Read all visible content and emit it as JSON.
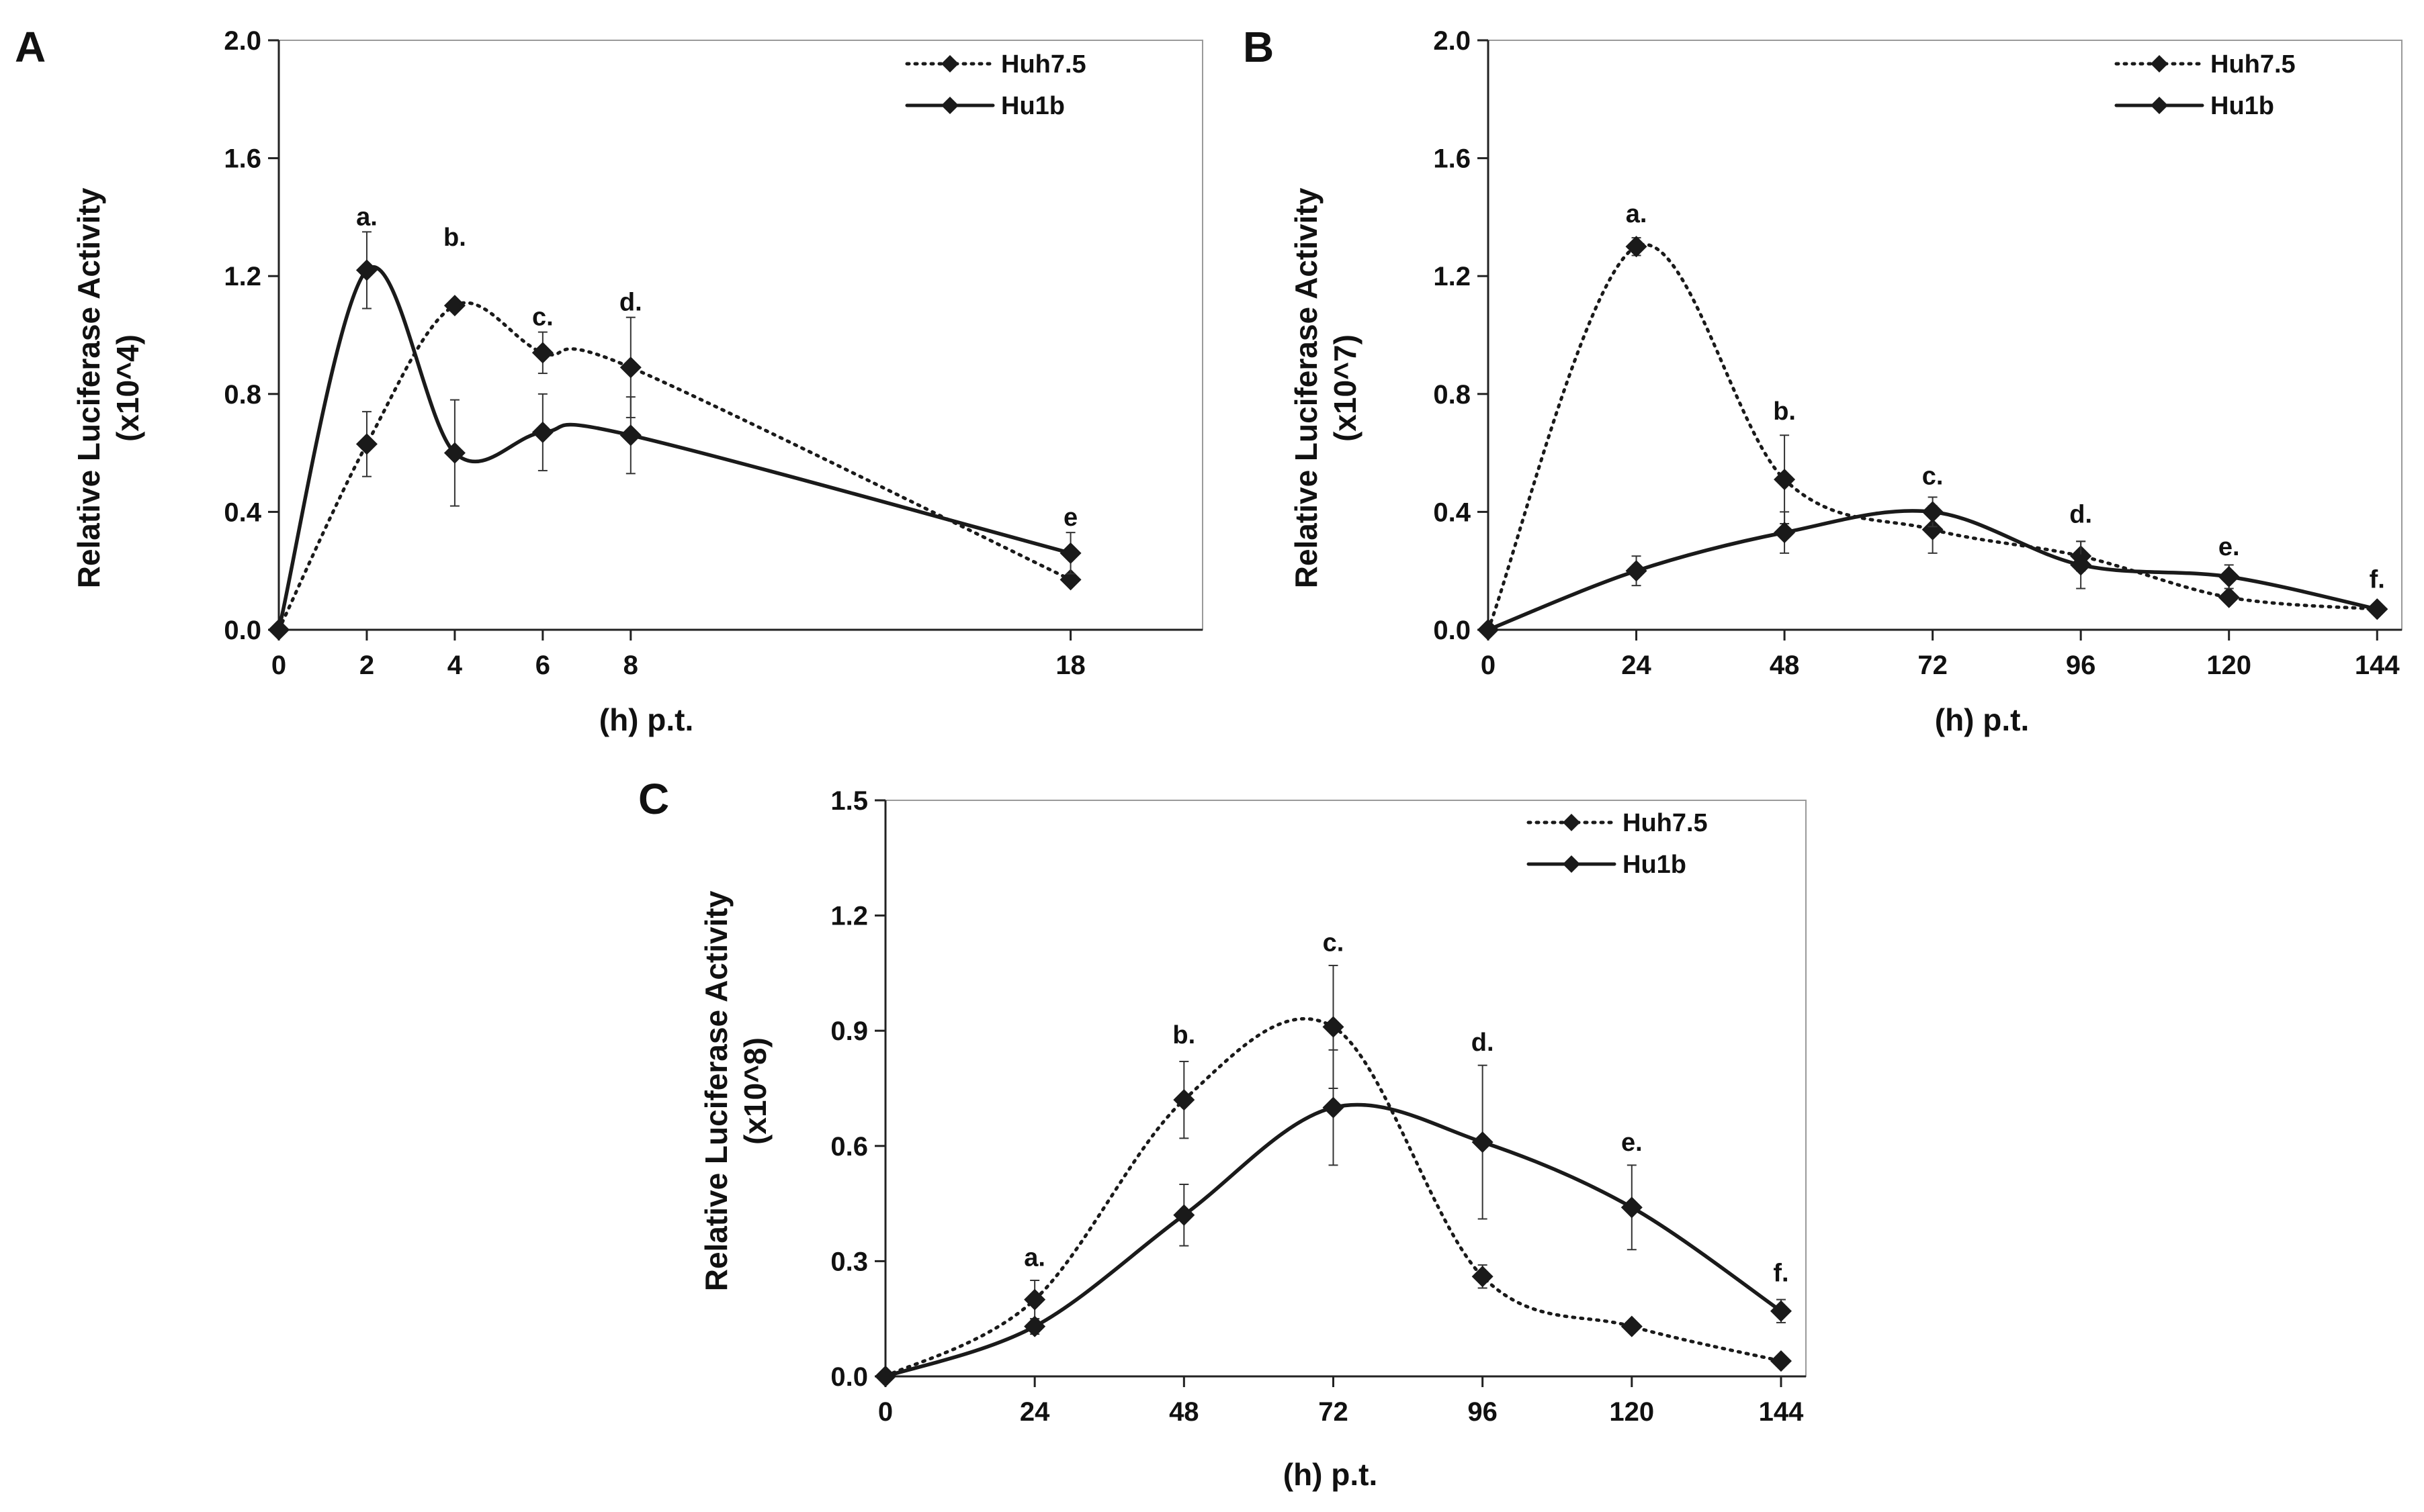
{
  "figure": {
    "description_free": true
  },
  "chart_data": [
    {
      "panel": "A",
      "type": "line",
      "ylabel": "Relative Luciferase Activity",
      "yunit": "(x10^4)",
      "xlabel": "(h) p.t.",
      "x_ticks": [
        "0",
        "2",
        "4",
        "6",
        "8",
        "18"
      ],
      "x_tick_values": [
        0,
        2,
        4,
        6,
        8,
        18
      ],
      "xlim": [
        0,
        21
      ],
      "ylim": [
        0,
        2.0
      ],
      "y_ticks": [
        "0.0",
        "0.4",
        "0.8",
        "1.2",
        "1.6",
        "2.0"
      ],
      "y_tick_values": [
        0,
        0.4,
        0.8,
        1.2,
        1.6,
        2.0
      ],
      "series": [
        {
          "name": "Huh7.5",
          "style": "dotted",
          "x": [
            0,
            2,
            4,
            6,
            8,
            18
          ],
          "values": [
            0,
            0.63,
            1.1,
            0.94,
            0.89,
            0.17
          ],
          "err": [
            0,
            0.11,
            0,
            0.07,
            0.17,
            0
          ]
        },
        {
          "name": "Hu1b",
          "style": "solid",
          "x": [
            0,
            2,
            4,
            6,
            8,
            18
          ],
          "values": [
            0,
            1.22,
            0.6,
            0.67,
            0.66,
            0.26
          ],
          "err": [
            0,
            0.13,
            0.18,
            0.13,
            0.13,
            0.07
          ]
        }
      ],
      "annotations": [
        {
          "label": "a.",
          "x": 2,
          "y": 1.35
        },
        {
          "label": "b.",
          "x": 4,
          "y": 1.28
        },
        {
          "label": "c.",
          "x": 6,
          "y": 1.01
        },
        {
          "label": "d.",
          "x": 8,
          "y": 1.06
        },
        {
          "label": "e",
          "x": 18,
          "y": 0.33
        }
      ],
      "legend": {
        "position": "top-right",
        "entries": [
          "Huh7.5",
          "Hu1b"
        ]
      }
    },
    {
      "panel": "B",
      "type": "line",
      "ylabel": "Relative Luciferase Activity",
      "yunit": "(x10^7)",
      "xlabel": "(h) p.t.",
      "x_ticks": [
        "0",
        "24",
        "48",
        "72",
        "96",
        "120",
        "144"
      ],
      "x_tick_values": [
        0,
        24,
        48,
        72,
        96,
        120,
        144
      ],
      "xlim": [
        0,
        148
      ],
      "ylim": [
        0,
        2.0
      ],
      "y_ticks": [
        "0.0",
        "0.4",
        "0.8",
        "1.2",
        "1.6",
        "2.0"
      ],
      "y_tick_values": [
        0,
        0.4,
        0.8,
        1.2,
        1.6,
        2.0
      ],
      "series": [
        {
          "name": "Huh7.5",
          "style": "dotted",
          "x": [
            0,
            24,
            48,
            72,
            96,
            120,
            144
          ],
          "values": [
            0,
            1.3,
            0.51,
            0.34,
            0.25,
            0.11,
            0.07
          ],
          "err": [
            0,
            0.03,
            0.15,
            0.08,
            0.05,
            0,
            0
          ]
        },
        {
          "name": "Hu1b",
          "style": "solid",
          "x": [
            0,
            24,
            48,
            72,
            96,
            120,
            144
          ],
          "values": [
            0,
            0.2,
            0.33,
            0.4,
            0.22,
            0.18,
            0.07
          ],
          "err": [
            0,
            0.05,
            0.07,
            0.05,
            0.08,
            0.04,
            0
          ]
        }
      ],
      "annotations": [
        {
          "label": "a.",
          "x": 24,
          "y": 1.36
        },
        {
          "label": "b.",
          "x": 48,
          "y": 0.69
        },
        {
          "label": "c.",
          "x": 72,
          "y": 0.47
        },
        {
          "label": "d.",
          "x": 96,
          "y": 0.34
        },
        {
          "label": "e.",
          "x": 120,
          "y": 0.23
        },
        {
          "label": "f.",
          "x": 144,
          "y": 0.12
        }
      ],
      "legend": {
        "position": "top-right",
        "entries": [
          "Huh7.5",
          "Hu1b"
        ]
      }
    },
    {
      "panel": "C",
      "type": "line",
      "ylabel": "Relative Luciferase Activity",
      "yunit": "(x10^8)",
      "xlabel": "(h) p.t.",
      "x_ticks": [
        "0",
        "24",
        "48",
        "72",
        "96",
        "120",
        "144"
      ],
      "x_tick_values": [
        0,
        24,
        48,
        72,
        96,
        120,
        144
      ],
      "xlim": [
        0,
        148
      ],
      "ylim": [
        0,
        1.5
      ],
      "y_ticks": [
        "0.0",
        "0.3",
        "0.6",
        "0.9",
        "1.2",
        "1.5"
      ],
      "y_tick_values": [
        0,
        0.3,
        0.6,
        0.9,
        1.2,
        1.5
      ],
      "series": [
        {
          "name": "Huh7.5",
          "style": "dotted",
          "x": [
            0,
            24,
            48,
            72,
            96,
            120,
            144
          ],
          "values": [
            0,
            0.2,
            0.72,
            0.91,
            0.26,
            0.13,
            0.04
          ],
          "err": [
            0,
            0.05,
            0.1,
            0.16,
            0.03,
            0,
            0
          ]
        },
        {
          "name": "Hu1b",
          "style": "solid",
          "x": [
            0,
            24,
            48,
            72,
            96,
            120,
            144
          ],
          "values": [
            0,
            0.13,
            0.42,
            0.7,
            0.61,
            0.44,
            0.17
          ],
          "err": [
            0,
            0.02,
            0.08,
            0.15,
            0.2,
            0.11,
            0.03
          ]
        }
      ],
      "annotations": [
        {
          "label": "a.",
          "x": 24,
          "y": 0.27
        },
        {
          "label": "b.",
          "x": 48,
          "y": 0.85
        },
        {
          "label": "c.",
          "x": 72,
          "y": 1.09
        },
        {
          "label": "d.",
          "x": 96,
          "y": 0.83
        },
        {
          "label": "e.",
          "x": 120,
          "y": 0.57
        },
        {
          "label": "f.",
          "x": 144,
          "y": 0.23
        }
      ],
      "legend": {
        "position": "top-right",
        "entries": [
          "Huh7.5",
          "Hu1b"
        ]
      }
    }
  ]
}
